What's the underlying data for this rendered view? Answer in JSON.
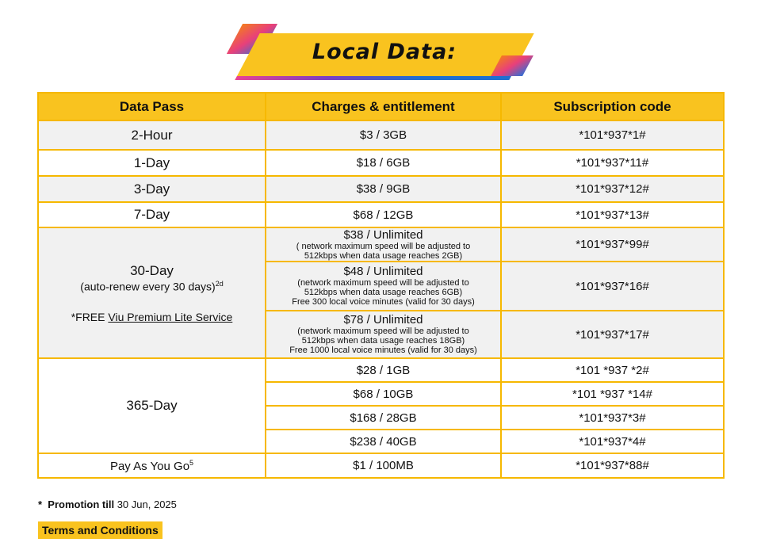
{
  "banner": {
    "title": "Local Data:"
  },
  "table": {
    "headers": [
      "Data Pass",
      "Charges & entitlement",
      "Subscription code"
    ],
    "simple_rows": [
      {
        "pass": "2-Hour",
        "charge": "$3 / 3GB",
        "code": "*101*937*1#"
      },
      {
        "pass": "1-Day",
        "charge": "$18 / 6GB",
        "code": "*101*937*11#"
      },
      {
        "pass": "3-Day",
        "charge": "$38 / 9GB",
        "code": "*101*937*12#"
      },
      {
        "pass": "7-Day",
        "charge": "$68 / 12GB",
        "code": "*101*937*13#"
      }
    ],
    "thirty_day": {
      "pass": "30-Day",
      "renew": "(auto-renew every 30 days)",
      "renew_sup": "2d",
      "free_prefix": "*FREE ",
      "free_link": "Viu Premium Lite Service",
      "plans": [
        {
          "price": "$38 / Unlimited",
          "note1": "( network maximum speed will be adjusted to",
          "note2": "512kbps when data usage reaches 2GB)",
          "extra": "",
          "code": "*101*937*99#"
        },
        {
          "price": "$48 / Unlimited",
          "note1": "(network maximum speed will be adjusted to",
          "note2": "512kbps when data usage reaches 6GB)",
          "extra": "Free 300 local voice minutes (valid for 30 days)",
          "code": "*101*937*16#"
        },
        {
          "price": "$78 / Unlimited",
          "note1": "(network maximum speed will be adjusted to",
          "note2": "512kbps when data usage reaches 18GB)",
          "extra": "Free 1000 local voice minutes (valid for 30 days)",
          "code": "*101*937*17#"
        }
      ]
    },
    "year": {
      "pass": "365-Day",
      "plans": [
        {
          "charge": "$28 / 1GB",
          "code": "*101 *937 *2#"
        },
        {
          "charge": "$68 / 10GB",
          "code": "*101 *937 *14#"
        },
        {
          "charge": "$168 / 28GB",
          "code": "*101*937*3#"
        },
        {
          "charge": "$238 / 40GB",
          "code": "*101*937*4#"
        }
      ]
    },
    "payg": {
      "pass": "Pay As You Go",
      "sup": "5",
      "charge": "$1 / 100MB",
      "code": "*101*937*88#"
    }
  },
  "footer": {
    "star": "*",
    "promo_label": "Promotion till",
    "promo_date": "30 Jun, 2025",
    "terms": "Terms and Conditions"
  },
  "colors": {
    "accent": "#f9c31f",
    "border": "#f6b800",
    "row_shade": "#f1f1f1"
  }
}
